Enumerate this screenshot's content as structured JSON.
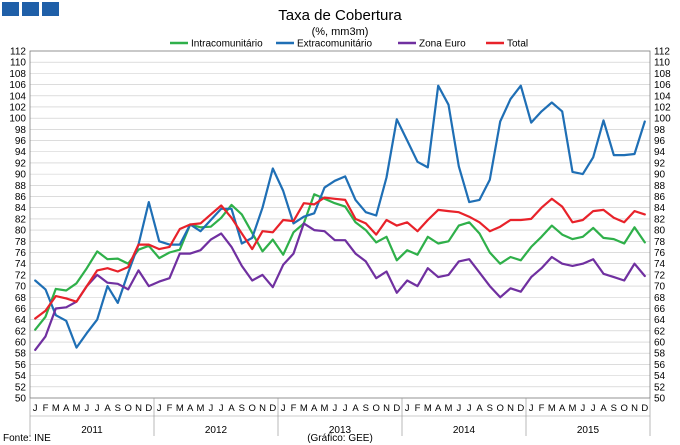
{
  "logo": {
    "squares": 3,
    "color": "#1f5fa8"
  },
  "source_note": "Fonte: INE",
  "chart_data": {
    "type": "line",
    "title": "Taxa de Cobertura",
    "subtitle": "(%, mm3m)",
    "ylim": [
      50,
      112
    ],
    "yticks": [
      50,
      52,
      54,
      56,
      58,
      60,
      62,
      64,
      66,
      68,
      70,
      72,
      74,
      76,
      78,
      80,
      82,
      84,
      86,
      88,
      90,
      92,
      94,
      96,
      98,
      100,
      102,
      104,
      106,
      108,
      110,
      112
    ],
    "months": [
      "J",
      "F",
      "M",
      "A",
      "M",
      "J",
      "J",
      "A",
      "S",
      "O",
      "N",
      "D",
      "J",
      "F",
      "M",
      "A",
      "M",
      "J",
      "J",
      "A",
      "S",
      "O",
      "N",
      "D",
      "J",
      "F",
      "M",
      "A",
      "M",
      "J",
      "J",
      "A",
      "S",
      "O",
      "N",
      "D",
      "J",
      "F",
      "M",
      "A",
      "M",
      "J",
      "J",
      "A",
      "S",
      "O",
      "N",
      "D",
      "J",
      "F",
      "M",
      "A",
      "M",
      "J",
      "J",
      "A",
      "S",
      "O",
      "N",
      "D"
    ],
    "years": [
      "2011",
      "2012",
      "2013",
      "2014",
      "2015"
    ],
    "year_note": "(Gráfico: GEE)",
    "grid": true,
    "legend_position": "top",
    "series": [
      {
        "name": "Intracomunitário",
        "color": "#2fb04a",
        "values": [
          62.2,
          64.5,
          69.5,
          69.2,
          70.5,
          73.2,
          76.2,
          74.8,
          74.9,
          74,
          76.5,
          77.2,
          75,
          76,
          76.5,
          81,
          80.5,
          80.6,
          82.2,
          84.5,
          82.8,
          79.5,
          76.2,
          78.3,
          75.6,
          79.6,
          81.2,
          86.4,
          85.6,
          84.8,
          84.2,
          81.4,
          80,
          77.8,
          78.8,
          74.6,
          76.4,
          75.6,
          78.8,
          77.6,
          78,
          80.8,
          81.4,
          79.4,
          76,
          74,
          75.2,
          74.6,
          77,
          78.8,
          80.8,
          79.2,
          78.4,
          78.8,
          80.4,
          78.6,
          78.4,
          77.6,
          80.5,
          77.8
        ]
      },
      {
        "name": "Extracomunitário",
        "color": "#1f6fb5",
        "values": [
          71,
          69.4,
          64.8,
          63.8,
          59,
          61.6,
          64,
          70,
          67,
          72.4,
          77.4,
          85,
          78,
          77.4,
          77.4,
          81,
          79.8,
          81.8,
          83.8,
          83.8,
          77.6,
          78.6,
          84,
          91,
          87,
          81.2,
          82.4,
          83,
          87.6,
          88.8,
          89.6,
          85.4,
          83.2,
          82.6,
          89.4,
          99.8,
          96,
          92.2,
          91.2,
          105.8,
          102.4,
          91.4,
          85,
          85.4,
          89,
          99.4,
          103.4,
          105.8,
          99.2,
          101.2,
          102.8,
          101.2,
          90.4,
          90,
          93,
          99.6,
          93.4,
          93.4,
          93.6,
          99.4
        ]
      },
      {
        "name": "Zona Euro",
        "color": "#7030a0",
        "values": [
          58.6,
          61,
          66,
          66.2,
          67.2,
          70,
          72,
          70.6,
          70.4,
          69.4,
          72.8,
          70,
          70.8,
          71.4,
          75.8,
          75.8,
          76.4,
          78.3,
          79.4,
          77,
          73.6,
          71,
          72,
          69.8,
          73.8,
          75.8,
          81.2,
          80,
          79.8,
          78.2,
          78.2,
          75.8,
          74.4,
          71.4,
          72.6,
          68.8,
          71,
          70,
          73.2,
          71.6,
          72,
          74.4,
          74.8,
          72.4,
          70,
          68,
          69.6,
          69,
          71.6,
          73.2,
          75.2,
          74,
          73.6,
          74,
          74.8,
          72.2,
          71.6,
          71,
          74,
          71.8
        ]
      },
      {
        "name": "Total",
        "color": "#e8222a",
        "values": [
          64.2,
          65.6,
          68.2,
          67.8,
          67.2,
          70,
          72.8,
          73.2,
          72.6,
          73.4,
          77.4,
          77.4,
          76.6,
          77,
          80.2,
          81,
          81.2,
          82.8,
          84.4,
          82.2,
          79.4,
          76.6,
          79.8,
          79.6,
          81.8,
          81.6,
          84.8,
          84.6,
          85.8,
          85.6,
          85.4,
          82,
          81.2,
          79.2,
          81.8,
          80.8,
          81.4,
          79.8,
          81.8,
          83.6,
          83.4,
          83.2,
          82.4,
          81.4,
          79.8,
          80.6,
          81.8,
          81.8,
          82,
          84,
          85.6,
          84.2,
          81.4,
          81.8,
          83.4,
          83.6,
          82.2,
          81.4,
          83.4,
          82.8
        ]
      }
    ]
  }
}
